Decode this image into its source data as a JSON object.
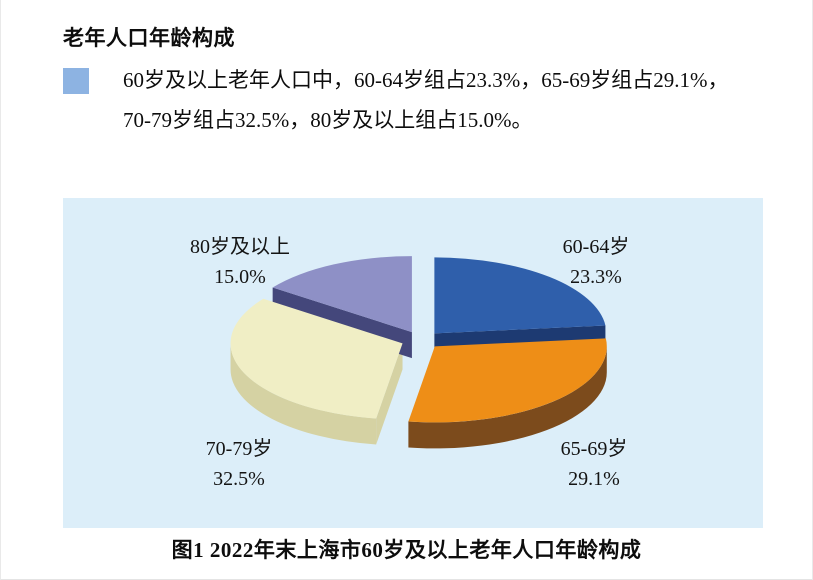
{
  "header": {
    "title": "老年人口年龄构成"
  },
  "summary": {
    "bullet_color": "#8db3e2",
    "line1": "60岁及以上老年人口中，60-64岁组占23.3%，65-69岁组占29.1%，",
    "line2": "70-79岁组占32.5%，80岁及以上组占15.0%。"
  },
  "chart_data": {
    "type": "pie",
    "style": "3d-exploded",
    "title": "图1  2022年末上海市60岁及以上老年人口年龄构成",
    "unit": "%",
    "start_angle_deg": 0,
    "direction": "clockwise",
    "background": "#dceef9",
    "slices": [
      {
        "label": "60-64岁",
        "value": 23.3,
        "pct_label": "23.3%",
        "color": "#2f5fab",
        "side_color": "#1d3a72"
      },
      {
        "label": "65-69岁",
        "value": 29.1,
        "pct_label": "29.1%",
        "color": "#ee8e17",
        "side_color": "#7c4b1c"
      },
      {
        "label": "70-79岁",
        "value": 32.5,
        "pct_label": "32.5%",
        "color": "#f0eec5",
        "side_color": "#d5d2a3"
      },
      {
        "label": "80岁及以上",
        "value": 15.0,
        "pct_label": "15.0%",
        "color": "#8e90c6",
        "side_color": "#44477b"
      }
    ]
  }
}
